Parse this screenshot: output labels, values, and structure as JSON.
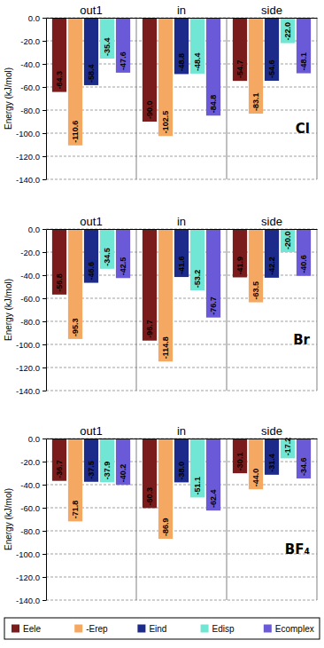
{
  "chart_data": [
    {
      "type": "bar",
      "annotation": "Cl",
      "y_label": "Energy (kJ/mol)",
      "categories": [
        "out1",
        "in",
        "side"
      ],
      "series": [
        {
          "color": "#7b1c1c",
          "values": [
            -64.3,
            -90.0,
            -54.7
          ],
          "value_labels": [
            "-64.3",
            "-90.0",
            "-54.7"
          ]
        },
        {
          "color": "#f5a862",
          "values": [
            -110.6,
            -102.5,
            -83.1
          ],
          "value_labels": [
            "-110.6",
            "-102.5",
            "-83.1"
          ]
        },
        {
          "color": "#1c2a8a",
          "values": [
            -58.4,
            -48.8,
            -54.6
          ],
          "value_labels": [
            "-58.4",
            "-48.8",
            "-54.6"
          ]
        },
        {
          "color": "#72e6d4",
          "values": [
            -35.4,
            -48.4,
            -22.0
          ],
          "value_labels": [
            "-35.4",
            "-48.4",
            "-22.0"
          ]
        },
        {
          "color": "#6a5ad8",
          "values": [
            -47.6,
            -84.8,
            -48.1
          ],
          "value_labels": [
            "-47.6",
            "-84.8",
            "-48.1"
          ]
        }
      ],
      "ylim": [
        -140,
        0
      ],
      "yticks": [
        {
          "value": -140,
          "label": "-140.0"
        },
        {
          "value": -120,
          "label": "-120.0"
        },
        {
          "value": -100,
          "label": "-100.0"
        },
        {
          "value": -80,
          "label": "-80.0"
        },
        {
          "value": -60,
          "label": "-60.0"
        },
        {
          "value": -40,
          "label": "-40.0"
        },
        {
          "value": -20,
          "label": "-20.0"
        },
        {
          "value": 0,
          "label": "0.0"
        }
      ],
      "grid": true,
      "data_labels": true
    },
    {
      "type": "bar",
      "annotation": "Br",
      "y_label": "Energy (kJ/mol)",
      "categories": [
        "out1",
        "in",
        "side"
      ],
      "series": [
        {
          "color": "#7b1c1c",
          "values": [
            -56.8,
            -96.7,
            -41.9
          ],
          "value_labels": [
            "-56.8",
            "-96.7",
            "-41.9"
          ]
        },
        {
          "color": "#f5a862",
          "values": [
            -95.3,
            -114.8,
            -63.5
          ],
          "value_labels": [
            "-95.3",
            "-114.8",
            "-63.5"
          ]
        },
        {
          "color": "#1c2a8a",
          "values": [
            -46.6,
            -41.6,
            -42.2
          ],
          "value_labels": [
            "-46.6",
            "-41.6",
            "-42.2"
          ]
        },
        {
          "color": "#72e6d4",
          "values": [
            -34.5,
            -53.2,
            -20.0
          ],
          "value_labels": [
            "-34.5",
            "-53.2",
            "-20.0"
          ]
        },
        {
          "color": "#6a5ad8",
          "values": [
            -42.5,
            -76.7,
            -40.6
          ],
          "value_labels": [
            "-42.5",
            "-76.7",
            "-40.6"
          ]
        }
      ],
      "ylim": [
        -140,
        0
      ],
      "yticks": [
        {
          "value": -140,
          "label": "-140.0"
        },
        {
          "value": -120,
          "label": "-120.0"
        },
        {
          "value": -100,
          "label": "-100.0"
        },
        {
          "value": -80,
          "label": "-80.0"
        },
        {
          "value": -60,
          "label": "-60.0"
        },
        {
          "value": -40,
          "label": "-40.0"
        },
        {
          "value": -20,
          "label": "-20.0"
        },
        {
          "value": 0,
          "label": "0.0"
        }
      ],
      "grid": true,
      "data_labels": true
    },
    {
      "type": "bar",
      "annotation": "BF₄",
      "y_label": "Energy (kJ/mol)",
      "categories": [
        "out1",
        "in",
        "side"
      ],
      "series": [
        {
          "name": "Eele",
          "color": "#7b1c1c",
          "values": [
            -36.7,
            -60.3,
            -30.1
          ],
          "value_labels": [
            "-36.7",
            "-60.3",
            "-30.1"
          ]
        },
        {
          "name": "-Erep",
          "color": "#f5a862",
          "values": [
            -71.8,
            -86.9,
            -44.0
          ],
          "value_labels": [
            "-71.8",
            "-86.9",
            "-44.0"
          ]
        },
        {
          "name": "Eind",
          "color": "#1c2a8a",
          "values": [
            -37.5,
            -38.0,
            -31.4
          ],
          "value_labels": [
            "-37.5",
            "-38.0",
            "-31.4"
          ]
        },
        {
          "name": "Edisp",
          "color": "#72e6d4",
          "values": [
            -37.9,
            -51.1,
            -17.2
          ],
          "value_labels": [
            "-37.9",
            "-51.1",
            "-17.2"
          ]
        },
        {
          "name": "Ecomplex",
          "color": "#6a5ad8",
          "values": [
            -40.2,
            -62.4,
            -34.6
          ],
          "value_labels": [
            "-40.2",
            "-62.4",
            "-34.6"
          ]
        }
      ],
      "ylim": [
        -140,
        0
      ],
      "yticks": [
        {
          "value": -140,
          "label": "-140.0"
        },
        {
          "value": -120,
          "label": "-120.0"
        },
        {
          "value": -100,
          "label": "-100.0"
        },
        {
          "value": -80,
          "label": "-80.0"
        },
        {
          "value": -60,
          "label": "-60.0"
        },
        {
          "value": -40,
          "label": "-40.0"
        },
        {
          "value": -20,
          "label": "-20.0"
        },
        {
          "value": 0,
          "label": "0.0"
        }
      ],
      "grid": true,
      "data_labels": true,
      "legend": "bottom"
    }
  ]
}
